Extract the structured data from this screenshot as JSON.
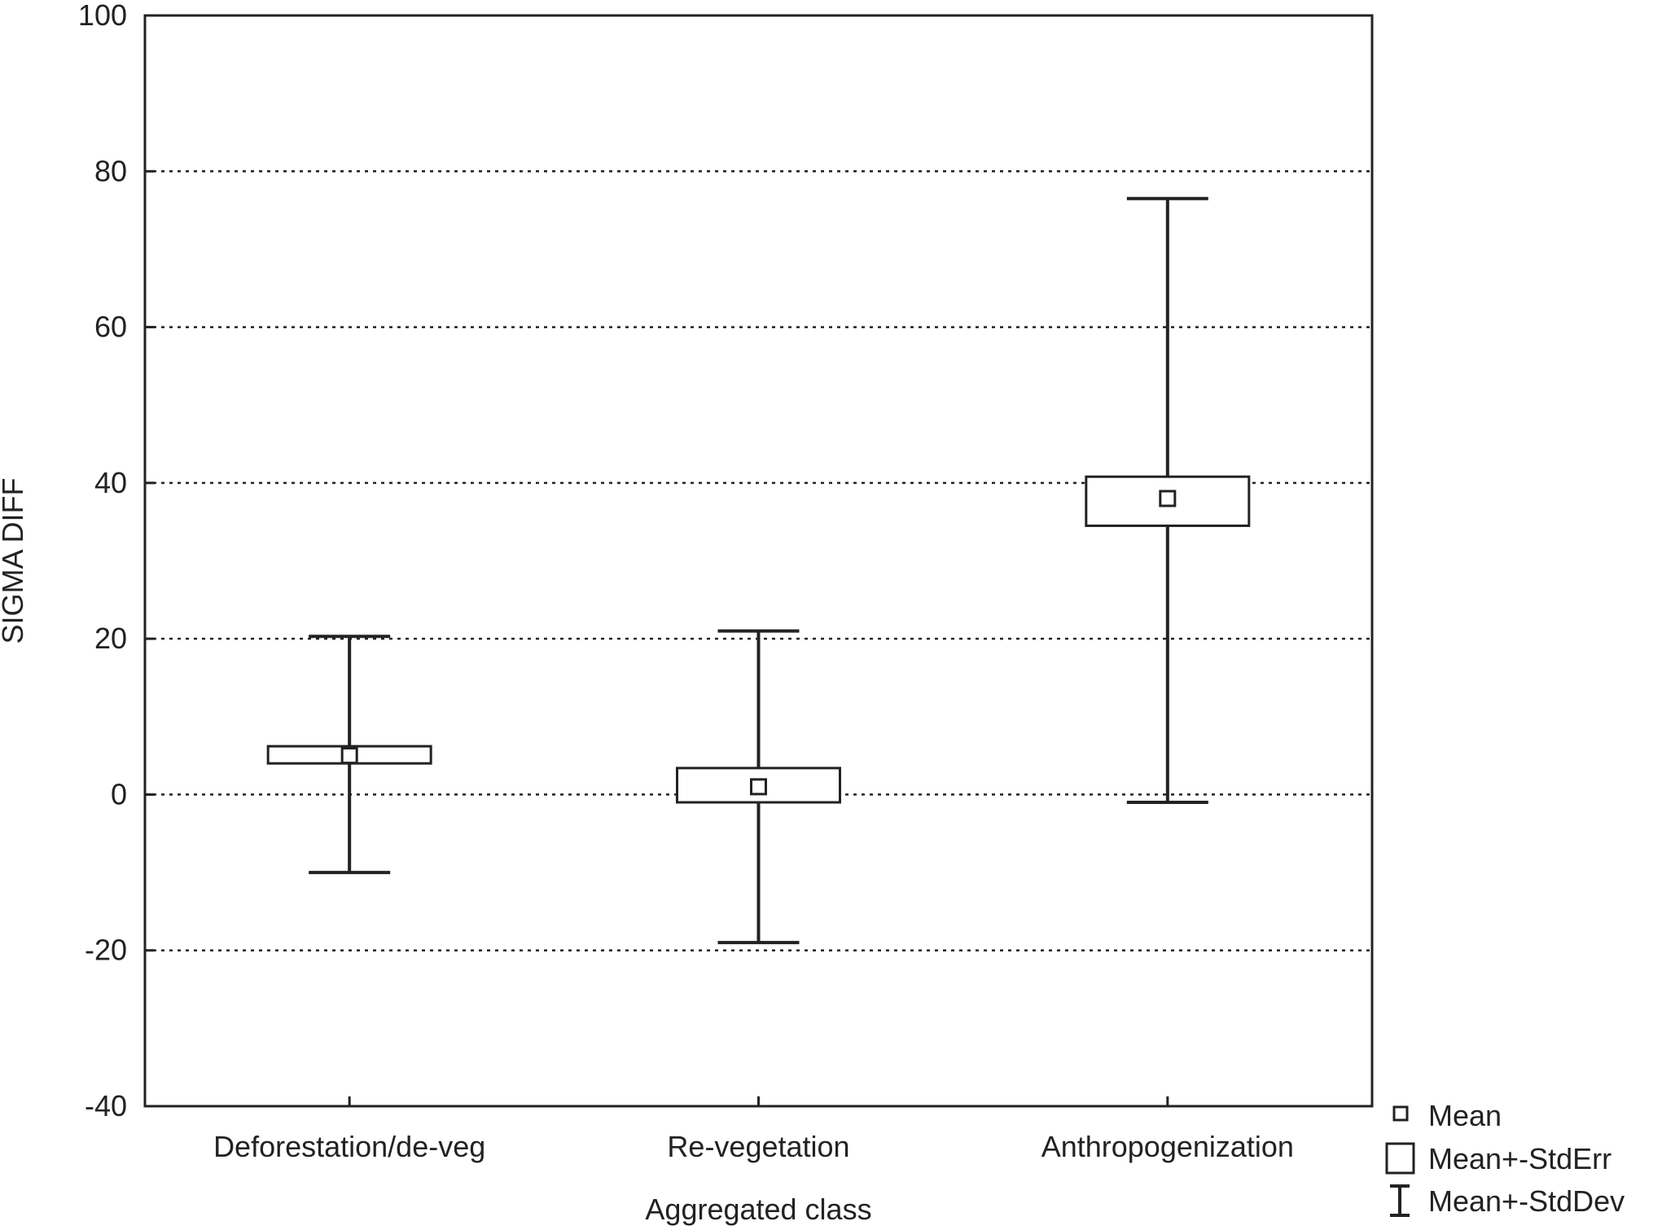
{
  "chart_data": {
    "type": "box",
    "xlabel": "Aggregated class",
    "ylabel": "SIGMA DIFF",
    "ylim": [
      -40,
      100
    ],
    "yticks": [
      -40,
      -20,
      0,
      20,
      40,
      60,
      80,
      100
    ],
    "categories": [
      "Deforestation/de-veg",
      "Re-vegetation",
      "Anthropogenization"
    ],
    "mean": [
      5,
      1,
      38
    ],
    "stderr_low": [
      4,
      -1,
      34.5
    ],
    "stderr_high": [
      6.2,
      3.4,
      40.8
    ],
    "stddev_low": [
      -10,
      -19,
      -1
    ],
    "stddev_high": [
      20.3,
      21,
      76.5
    ],
    "grid": "horizontal dotted",
    "legend_position": "bottom-right",
    "legend": [
      "Mean",
      "Mean+-StdErr",
      "Mean+-StdDev"
    ]
  }
}
